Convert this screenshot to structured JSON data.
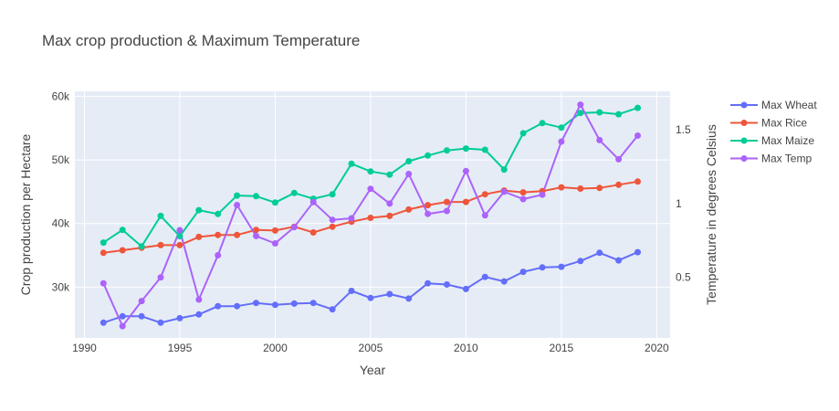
{
  "chart_data": {
    "type": "line",
    "title": "Max crop production & Maximum Temperature",
    "xlabel": "Year",
    "ylabel": "Crop production per Hectare",
    "y2label": "Temperature in degrees Celsius",
    "xlim": [
      1989.5,
      2020.7
    ],
    "ylim": [
      22000,
      60800
    ],
    "y2lim": [
      0.09,
      1.76
    ],
    "x_ticks": [
      1990,
      1995,
      2000,
      2005,
      2010,
      2015,
      2020
    ],
    "y_ticks": [
      30000,
      40000,
      50000,
      60000
    ],
    "y_tick_labels": [
      "30k",
      "40k",
      "50k",
      "60k"
    ],
    "y2_ticks": [
      0.5,
      1,
      1.5
    ],
    "y2_tick_labels": [
      "0.5",
      "1",
      "1.5"
    ],
    "grid": true,
    "legend_position": "top-right",
    "x": [
      1991,
      1992,
      1993,
      1994,
      1995,
      1996,
      1997,
      1998,
      1999,
      2000,
      2001,
      2002,
      2003,
      2004,
      2005,
      2006,
      2007,
      2008,
      2009,
      2010,
      2011,
      2012,
      2013,
      2014,
      2015,
      2016,
      2017,
      2018,
      2019
    ],
    "series": [
      {
        "name": "Max Wheat",
        "axis": "y",
        "color": "#636efa",
        "values": [
          24400,
          25400,
          25400,
          24400,
          25100,
          25700,
          27000,
          27000,
          27500,
          27200,
          27400,
          27500,
          26500,
          29400,
          28300,
          28900,
          28200,
          30600,
          30400,
          29700,
          31600,
          30900,
          32400,
          33100,
          33200,
          34100,
          35400,
          34200,
          35500
        ]
      },
      {
        "name": "Max Rice",
        "axis": "y",
        "color": "#ef553b",
        "values": [
          35400,
          35800,
          36200,
          36600,
          36600,
          37900,
          38200,
          38200,
          39000,
          38900,
          39500,
          38600,
          39500,
          40300,
          40900,
          41200,
          42200,
          42900,
          43400,
          43400,
          44600,
          45200,
          44900,
          45100,
          45700,
          45500,
          45600,
          46100,
          46600
        ]
      },
      {
        "name": "Max Maize",
        "axis": "y",
        "color": "#00cc96",
        "values": [
          37000,
          39000,
          36400,
          41200,
          38000,
          42100,
          41500,
          44400,
          44300,
          43300,
          44800,
          43900,
          44600,
          49400,
          48200,
          47700,
          49800,
          50700,
          51500,
          51800,
          51600,
          48500,
          54200,
          55800,
          55100,
          57400,
          57500,
          57200,
          58200
        ]
      },
      {
        "name": "Max Temp",
        "axis": "y2",
        "color": "#ab63fa",
        "values": [
          0.46,
          0.17,
          0.34,
          0.5,
          0.82,
          0.35,
          0.65,
          0.99,
          0.78,
          0.73,
          0.84,
          1.01,
          0.89,
          0.9,
          1.1,
          1.0,
          1.2,
          0.93,
          0.95,
          1.22,
          0.92,
          1.08,
          1.03,
          1.06,
          1.42,
          1.67,
          1.43,
          1.3,
          1.46
        ]
      }
    ]
  }
}
